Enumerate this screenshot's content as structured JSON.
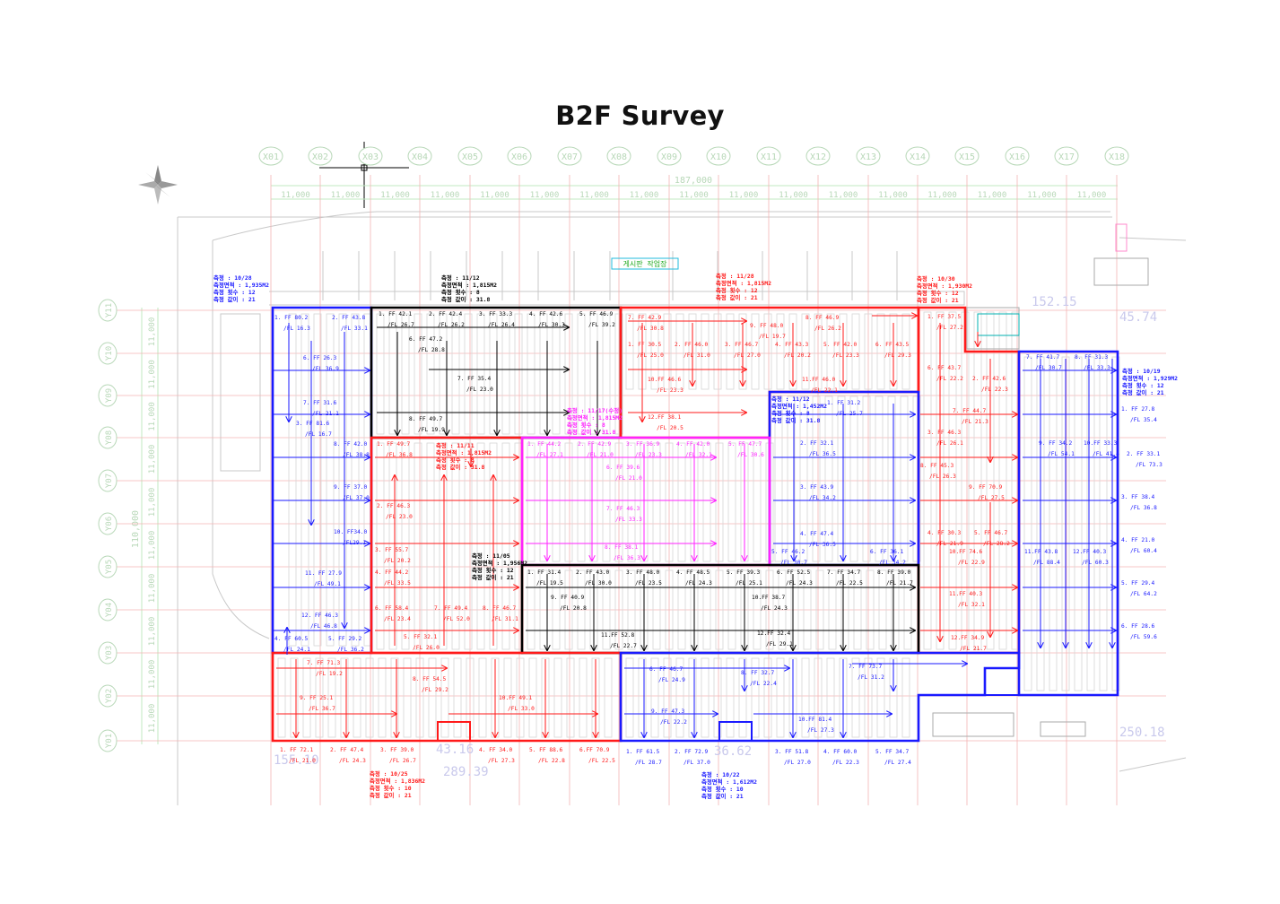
{
  "title": "B2F Survey",
  "grid": {
    "columns": [
      "X01",
      "X02",
      "X03",
      "X04",
      "X05",
      "X06",
      "X07",
      "X08",
      "X09",
      "X10",
      "X11",
      "X12",
      "X13",
      "X14",
      "X15",
      "X16",
      "X17",
      "X18"
    ],
    "rows": [
      "Y11",
      "Y10",
      "Y09",
      "Y08",
      "Y07",
      "Y06",
      "Y05",
      "Y04",
      "Y03",
      "Y02",
      "Y01"
    ],
    "total_dim": "187,000",
    "bay_dim": "11,000",
    "side_total_dim": "110,000"
  },
  "zones": [
    {
      "id": "z1",
      "color": "#1a1aff",
      "info": [
        "측정 : 10/28",
        "측정면적 : 1,935M2",
        "측정 횟수 : 12",
        "측정 값이 : 21"
      ]
    },
    {
      "id": "z2",
      "color": "#000000",
      "info": [
        "측정 : 11/12",
        "측정면적 : 1,815M2",
        "측정 횟수 : 8",
        "측정 값이 : 31.8"
      ]
    },
    {
      "id": "z3",
      "color": "#ff1a1a",
      "info": [
        "측정 : 11/28",
        "측정면적 : 1,815M2",
        "측정 횟수 : 12",
        "측정 값이 : 21"
      ]
    },
    {
      "id": "z4",
      "color": "#ff1a1a",
      "info": [
        "측정 : 10/30",
        "측정면적 : 1,930M2",
        "측정 횟수 : 12",
        "측정 값이 : 21"
      ]
    },
    {
      "id": "z5",
      "color": "#1a1aff",
      "info": [
        "측정 : 10/19",
        "측정면적 : 1,929M2",
        "측정 횟수 : 12",
        "측정 값이 : 21"
      ]
    },
    {
      "id": "z6",
      "color": "#1a1aff",
      "info": [
        "측정 : 11/12",
        "측정면적 : 1,452M2",
        "측정 횟수 : 8",
        "측정 값이 : 31.8"
      ]
    },
    {
      "id": "z7",
      "color": "#ff1a1a",
      "info": [
        "측정 : 11/11",
        "측정면적 : 1,815M2",
        "측정 횟수 : 8",
        "측정 값이 : 31.8"
      ]
    },
    {
      "id": "z8",
      "color": "#000000",
      "info": [
        "측정 : 11/05",
        "측정면적 : 1,956M2",
        "측정 횟수 : 12",
        "측정 값이 : 21"
      ]
    },
    {
      "id": "z9",
      "color": "#ff1a1a",
      "info": [
        "측정 : 10/25",
        "측정면적 : 1,836M2",
        "측정 횟수 : 10",
        "측정 값이 : 21"
      ]
    },
    {
      "id": "z10",
      "color": "#1a1aff",
      "info": [
        "측정 : 10/22",
        "측정면적 : 1,612M2",
        "측정 횟수 : 10",
        "측정 값이 : 21"
      ]
    },
    {
      "id": "z11",
      "color": "#ff22ff",
      "info": [
        "측정 : 11/17(수정)",
        "측정면적 : 1,815M2",
        "측정 횟수 : 8",
        "측정 값이 : 31.8"
      ]
    }
  ],
  "readings": [
    {
      "c": "#1a1aff",
      "t": [
        "1. FF 80.2",
        "/FL 16.3"
      ]
    },
    {
      "c": "#1a1aff",
      "t": [
        "2. FF 43.8",
        "/FL 33.1"
      ]
    },
    {
      "c": "#1a1aff",
      "t": [
        "6. FF 26.3",
        "/FL 36.9"
      ]
    },
    {
      "c": "#1a1aff",
      "t": [
        "7. FF 31.6",
        "/FL 21.1"
      ]
    },
    {
      "c": "#1a1aff",
      "t": [
        "3. FF 81.6",
        "/FL 16.7"
      ]
    },
    {
      "c": "#1a1aff",
      "t": [
        "8. FF 42.0",
        "/FL 38.8"
      ]
    },
    {
      "c": "#1a1aff",
      "t": [
        "9. FF 37.0",
        "/FL 37.0"
      ]
    },
    {
      "c": "#1a1aff",
      "t": [
        "10. FF34.0",
        "/FL29.1"
      ]
    },
    {
      "c": "#1a1aff",
      "t": [
        "11. FF 27.9",
        "/FL 49.1"
      ]
    },
    {
      "c": "#1a1aff",
      "t": [
        "12. FF 46.3",
        "/FL 46.8"
      ]
    },
    {
      "c": "#1a1aff",
      "t": [
        "4. FF 60.5",
        "/FL 24.1"
      ]
    },
    {
      "c": "#1a1aff",
      "t": [
        "5. FF 29.2",
        "/FL 36.2"
      ]
    },
    {
      "c": "#000",
      "t": [
        "1. FF 42.1",
        "/FL 26.7"
      ]
    },
    {
      "c": "#000",
      "t": [
        "2. FF 42.4",
        "/FL 26.2"
      ]
    },
    {
      "c": "#000",
      "t": [
        "3. FF 33.3",
        "/FL 26.4"
      ]
    },
    {
      "c": "#000",
      "t": [
        "4. FF 42.6",
        "/FL 30.3"
      ]
    },
    {
      "c": "#000",
      "t": [
        "5. FF 46.9",
        "/FL 39.2"
      ]
    },
    {
      "c": "#000",
      "t": [
        "6. FF 47.2",
        "/FL 28.8"
      ]
    },
    {
      "c": "#000",
      "t": [
        "7. FF 35.4",
        "/FL 23.0"
      ]
    },
    {
      "c": "#000",
      "t": [
        "8. FF 49.7",
        "/FL 19.9"
      ]
    },
    {
      "c": "#ff1a1a",
      "t": [
        "7. FF 42.9",
        "/FL 30.8"
      ]
    },
    {
      "c": "#ff1a1a",
      "t": [
        "9. FF 48.0",
        "/FL 19.7"
      ]
    },
    {
      "c": "#ff1a1a",
      "t": [
        "8. FF 46.9",
        "/FL 26.2"
      ]
    },
    {
      "c": "#ff1a1a",
      "t": [
        "1. FF 30.5",
        "/FL 25.0"
      ]
    },
    {
      "c": "#ff1a1a",
      "t": [
        "2. FF 46.0",
        "/FL 31.0"
      ]
    },
    {
      "c": "#ff1a1a",
      "t": [
        "3. FF 46.7",
        "/FL 27.0"
      ]
    },
    {
      "c": "#ff1a1a",
      "t": [
        "4. FF 43.3",
        "/FL 20.2"
      ]
    },
    {
      "c": "#ff1a1a",
      "t": [
        "5. FF 42.0",
        "/FL 23.3"
      ]
    },
    {
      "c": "#ff1a1a",
      "t": [
        "6. FF 43.5",
        "/FL 29.3"
      ]
    },
    {
      "c": "#ff1a1a",
      "t": [
        "10.FF 46.6",
        "/FL 23.3"
      ]
    },
    {
      "c": "#ff1a1a",
      "t": [
        "11.FF 46.0",
        "/FL 22.1"
      ]
    },
    {
      "c": "#ff1a1a",
      "t": [
        "12.FF 38.1",
        "/FL 20.5"
      ]
    },
    {
      "c": "#ff1a1a",
      "t": [
        "1. FF 37.5",
        "/FL 27.2"
      ]
    },
    {
      "c": "#ff1a1a",
      "t": [
        "6. FF 43.7",
        "/FL 22.2"
      ]
    },
    {
      "c": "#ff1a1a",
      "t": [
        "2. FF 42.6",
        "/FL 22.3"
      ]
    },
    {
      "c": "#ff1a1a",
      "t": [
        "7. FF 44.7",
        "/FL 21.3"
      ]
    },
    {
      "c": "#ff1a1a",
      "t": [
        "3. FF 46.3",
        "/FL 26.1"
      ]
    },
    {
      "c": "#ff1a1a",
      "t": [
        "8. FF 45.3",
        "/FL 26.3"
      ]
    },
    {
      "c": "#ff1a1a",
      "t": [
        "9. FF 70.9",
        "/FL 27.5"
      ]
    },
    {
      "c": "#ff1a1a",
      "t": [
        "4. FF 30.3",
        "/FL 21.9"
      ]
    },
    {
      "c": "#ff1a1a",
      "t": [
        "5. FF 46.7",
        "/FL 28.2"
      ]
    },
    {
      "c": "#ff1a1a",
      "t": [
        "10.FF 74.6",
        "/FL 22.9"
      ]
    },
    {
      "c": "#ff1a1a",
      "t": [
        "11.FF 40.3",
        "/FL 32.1"
      ]
    },
    {
      "c": "#ff1a1a",
      "t": [
        "12.FF 34.9",
        "/FL 21.7"
      ]
    },
    {
      "c": "#1a1aff",
      "t": [
        "7. FF 41.7",
        "/FL 30.7"
      ]
    },
    {
      "c": "#1a1aff",
      "t": [
        "8. FF 31.3",
        "/FL 33.3"
      ]
    },
    {
      "c": "#1a1aff",
      "t": [
        "1. FF 27.8",
        "/FL 35.4"
      ]
    },
    {
      "c": "#1a1aff",
      "t": [
        "9. FF 34.2",
        "/FL 54.1"
      ]
    },
    {
      "c": "#1a1aff",
      "t": [
        "10.FF 33.3",
        "/FL 41.4"
      ]
    },
    {
      "c": "#1a1aff",
      "t": [
        "2. FF 33.1",
        "/FL 73.3"
      ]
    },
    {
      "c": "#1a1aff",
      "t": [
        "3. FF 38.4",
        "/FL 36.8"
      ]
    },
    {
      "c": "#1a1aff",
      "t": [
        "11.FF 43.8",
        "/FL 88.4"
      ]
    },
    {
      "c": "#1a1aff",
      "t": [
        "12.FF 40.3",
        "/FL 60.3"
      ]
    },
    {
      "c": "#1a1aff",
      "t": [
        "4. FF 21.0",
        "/FL 60.4"
      ]
    },
    {
      "c": "#1a1aff",
      "t": [
        "5. FF 29.4",
        "/FL 64.2"
      ]
    },
    {
      "c": "#1a1aff",
      "t": [
        "6. FF 28.6",
        "/FL 59.6"
      ]
    },
    {
      "c": "#1a1aff",
      "t": [
        "1. FF 31.2",
        "/FL 25.7"
      ]
    },
    {
      "c": "#1a1aff",
      "t": [
        "2. FF 32.1",
        "/FL 36.5"
      ]
    },
    {
      "c": "#1a1aff",
      "t": [
        "3. FF 43.9",
        "/FL 34.2"
      ]
    },
    {
      "c": "#1a1aff",
      "t": [
        "4. FF 47.4",
        "/FL 36.5"
      ]
    },
    {
      "c": "#1a1aff",
      "t": [
        "5. FF 46.2",
        "/FL 30.7"
      ]
    },
    {
      "c": "#1a1aff",
      "t": [
        "6. FF 36.1",
        "/FL 34.2"
      ]
    },
    {
      "c": "#ff1a1a",
      "t": [
        "1. FF 49.7",
        "/FL 36.8"
      ]
    },
    {
      "c": "#ff1a1a",
      "t": [
        "2. FF 46.3",
        "/FL 23.0"
      ]
    },
    {
      "c": "#ff1a1a",
      "t": [
        "3. FF 55.7",
        "/FL 20.2"
      ]
    },
    {
      "c": "#ff1a1a",
      "t": [
        "4. FF 44.2",
        "/FL 33.5"
      ]
    },
    {
      "c": "#ff1a1a",
      "t": [
        "6. FF 58.4",
        "/FL 23.4"
      ]
    },
    {
      "c": "#ff1a1a",
      "t": [
        "7. FF 49.4",
        "/FL 52.0"
      ]
    },
    {
      "c": "#ff1a1a",
      "t": [
        "8. FF 46.7",
        "/FL 31.1"
      ]
    },
    {
      "c": "#ff1a1a",
      "t": [
        "5. FF 32.1",
        "/FL 26.0"
      ]
    },
    {
      "c": "#ff22ff",
      "t": [
        "1. FF 44.2",
        "/FL 27.1"
      ]
    },
    {
      "c": "#ff22ff",
      "t": [
        "2. FF 42.9",
        "/FL 21.0"
      ]
    },
    {
      "c": "#ff22ff",
      "t": [
        "3. FF 36.9",
        "/FL 23.3"
      ]
    },
    {
      "c": "#ff22ff",
      "t": [
        "4. FF 42.0",
        "/FL 32.1"
      ]
    },
    {
      "c": "#ff22ff",
      "t": [
        "5. FF 47.7",
        "/FL 30.6"
      ]
    },
    {
      "c": "#ff22ff",
      "t": [
        "6. FF 39.6",
        "/FL 21.0"
      ]
    },
    {
      "c": "#ff22ff",
      "t": [
        "7. FF 46.3",
        "/FL 33.3"
      ]
    },
    {
      "c": "#ff22ff",
      "t": [
        "8. FF 38.1",
        "/FL 36.3"
      ]
    },
    {
      "c": "#000",
      "t": [
        "1. FF 31.4",
        "/FL 19.5"
      ]
    },
    {
      "c": "#000",
      "t": [
        "2. FF 43.0",
        "/FL 30.0"
      ]
    },
    {
      "c": "#000",
      "t": [
        "3. FF 48.0",
        "/FL 23.5"
      ]
    },
    {
      "c": "#000",
      "t": [
        "4. FF 48.5",
        "/FL 24.3"
      ]
    },
    {
      "c": "#000",
      "t": [
        "5. FF 39.3",
        "/FL 25.1"
      ]
    },
    {
      "c": "#000",
      "t": [
        "6. FF 52.5",
        "/FL 24.3"
      ]
    },
    {
      "c": "#000",
      "t": [
        "7. FF 34.7",
        "/FL 22.5"
      ]
    },
    {
      "c": "#000",
      "t": [
        "8. FF 39.0",
        "/FL 21.7"
      ]
    },
    {
      "c": "#000",
      "t": [
        "9. FF 40.9",
        "/FL 20.8"
      ]
    },
    {
      "c": "#000",
      "t": [
        "10.FF 38.7",
        "/FL 24.3"
      ]
    },
    {
      "c": "#000",
      "t": [
        "11.FF 52.8",
        "/FL 22.7"
      ]
    },
    {
      "c": "#000",
      "t": [
        "12.FF 32.4",
        "/FL 29.1"
      ]
    },
    {
      "c": "#ff1a1a",
      "t": [
        "7. FF 71.3",
        "/FL 19.2"
      ]
    },
    {
      "c": "#ff1a1a",
      "t": [
        "8. FF 54.5",
        "/FL 29.2"
      ]
    },
    {
      "c": "#ff1a1a",
      "t": [
        "9. FF 25.1",
        "/FL 36.7"
      ]
    },
    {
      "c": "#ff1a1a",
      "t": [
        "10.FF 49.1",
        "/FL 33.0"
      ]
    },
    {
      "c": "#ff1a1a",
      "t": [
        "1. FF 72.1",
        "/FL 21.0"
      ]
    },
    {
      "c": "#ff1a1a",
      "t": [
        "2. FF 47.4",
        "/FL 24.3"
      ]
    },
    {
      "c": "#ff1a1a",
      "t": [
        "3. FF 39.0",
        "/FL 26.7"
      ]
    },
    {
      "c": "#ff1a1a",
      "t": [
        "4. FF 34.0",
        "/FL 27.3"
      ]
    },
    {
      "c": "#ff1a1a",
      "t": [
        "5. FF 88.6",
        "/FL 22.8"
      ]
    },
    {
      "c": "#ff1a1a",
      "t": [
        "6.FF 70.9",
        "/FL 22.5"
      ]
    },
    {
      "c": "#1a1aff",
      "t": [
        "6. FF 46.7",
        "/FL 24.9"
      ]
    },
    {
      "c": "#1a1aff",
      "t": [
        "8. FF 32.7",
        "/FL 22.4"
      ]
    },
    {
      "c": "#1a1aff",
      "t": [
        "7. FF 73.7",
        "/FL 31.2"
      ]
    },
    {
      "c": "#1a1aff",
      "t": [
        "9. FF 47.3",
        "/FL 22.2"
      ]
    },
    {
      "c": "#1a1aff",
      "t": [
        "10.FF 81.4",
        "/FL 27.3"
      ]
    },
    {
      "c": "#1a1aff",
      "t": [
        "1. FF 61.5",
        "/FL 28.7"
      ]
    },
    {
      "c": "#1a1aff",
      "t": [
        "2. FF 72.9",
        "/FL 37.0"
      ]
    },
    {
      "c": "#1a1aff",
      "t": [
        "3. FF 51.8",
        "/FL 27.0"
      ]
    },
    {
      "c": "#1a1aff",
      "t": [
        "4. FF 60.0",
        "/FL 22.3"
      ]
    },
    {
      "c": "#1a1aff",
      "t": [
        "5. FF 34.7",
        "/FL 27.4"
      ]
    }
  ],
  "misc": {
    "elev_right_top": "45.74",
    "elev_right_top2": "152.15",
    "elev_right_bottom": "250.18",
    "elev_bottom_left": "155.10",
    "elev_bottom_mid1": "43.16",
    "elev_bottom_mid2": "289.39",
    "elev_bottom_mid3": "36.62",
    "green_tag": "게시판 작업장"
  }
}
